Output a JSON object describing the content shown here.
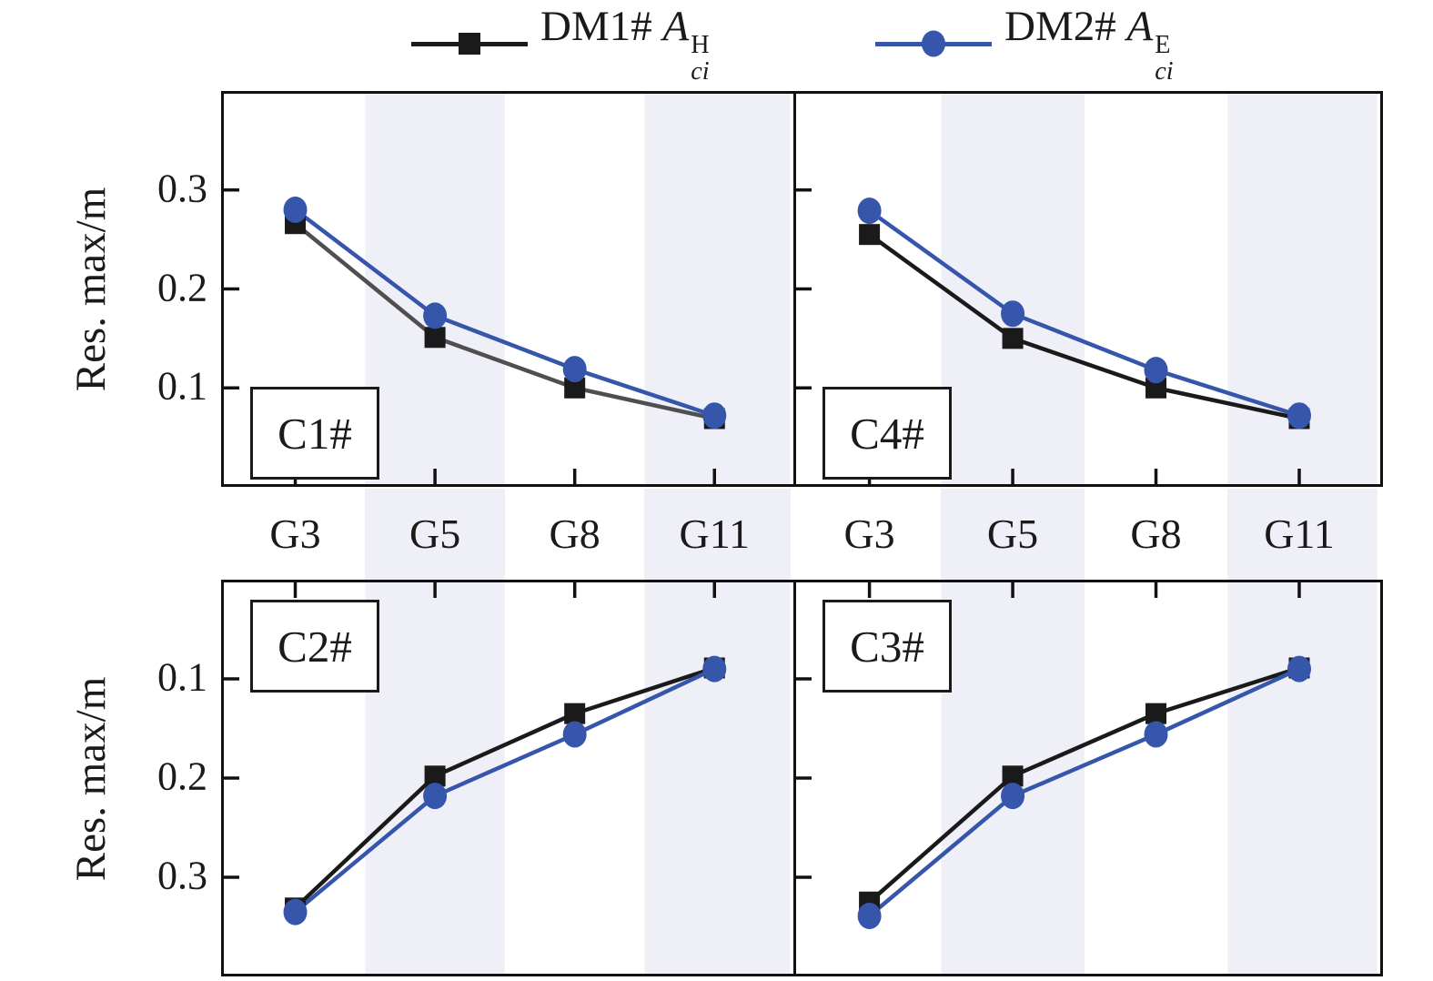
{
  "figure": {
    "y_axis_label": "Res. max/m",
    "categories": [
      "G3",
      "G5",
      "G8",
      "G11"
    ],
    "top_row_y_tick_labels": [
      "0.3",
      "0.2",
      "0.1"
    ],
    "bottom_row_y_tick_labels": [
      "0.1",
      "0.2",
      "0.3"
    ],
    "band_highlight_categories": [
      "G5",
      "G11"
    ],
    "colors": {
      "series_black": "#1a1a1a",
      "series_black_line_c1": "#4f4f4f",
      "series_blue": "#3556aa",
      "band": "#eff0f7",
      "axis": "#111111",
      "background": "#ffffff"
    }
  },
  "legend": {
    "entries": [
      {
        "prefix": "DM1# ",
        "symbol": "A",
        "sup": "H",
        "sub": "ci",
        "marker": "square",
        "color": "#1a1a1a"
      },
      {
        "prefix": "DM2# ",
        "symbol": "A",
        "sup": "E",
        "sub": "ci",
        "marker": "circle",
        "color": "#3556aa"
      }
    ]
  },
  "chart_data": [
    {
      "type": "line",
      "label": "C1#",
      "panel": "top-left",
      "categories": [
        "G3",
        "G5",
        "G8",
        "G11"
      ],
      "ylabel": "Res. max/m",
      "ylim": [
        0,
        0.4
      ],
      "y_ticks": [
        0.1,
        0.2,
        0.3
      ],
      "y_inverted": false,
      "series": [
        {
          "name": "DM1# A_ci^H",
          "marker": "square",
          "line_color": "#4f4f4f",
          "marker_color": "#1a1a1a",
          "values": [
            0.266,
            0.151,
            0.1,
            0.069
          ]
        },
        {
          "name": "DM2# A_ci^E",
          "marker": "circle",
          "line_color": "#3556aa",
          "marker_color": "#3556aa",
          "values": [
            0.28,
            0.173,
            0.119,
            0.072
          ]
        }
      ]
    },
    {
      "type": "line",
      "label": "C4#",
      "panel": "top-right",
      "categories": [
        "G3",
        "G5",
        "G8",
        "G11"
      ],
      "ylabel": "Res. max/m",
      "ylim": [
        0,
        0.4
      ],
      "y_ticks": [
        0.1,
        0.2,
        0.3
      ],
      "y_inverted": false,
      "series": [
        {
          "name": "DM1# A_ci^H",
          "marker": "square",
          "line_color": "#1a1a1a",
          "marker_color": "#1a1a1a",
          "values": [
            0.255,
            0.15,
            0.1,
            0.069
          ]
        },
        {
          "name": "DM2# A_ci^E",
          "marker": "circle",
          "line_color": "#3556aa",
          "marker_color": "#3556aa",
          "values": [
            0.279,
            0.175,
            0.118,
            0.072
          ]
        }
      ]
    },
    {
      "type": "line",
      "label": "C2#",
      "panel": "bottom-left",
      "categories": [
        "G3",
        "G5",
        "G8",
        "G11"
      ],
      "ylabel": "Res. max/m",
      "ylim": [
        0,
        0.4
      ],
      "y_ticks": [
        0.1,
        0.2,
        0.3
      ],
      "y_inverted": true,
      "series": [
        {
          "name": "DM1# A_ci^H",
          "marker": "square",
          "line_color": "#1a1a1a",
          "marker_color": "#1a1a1a",
          "values": [
            0.331,
            0.198,
            0.135,
            0.089
          ]
        },
        {
          "name": "DM2# A_ci^E",
          "marker": "circle",
          "line_color": "#3556aa",
          "marker_color": "#3556aa",
          "values": [
            0.335,
            0.218,
            0.156,
            0.09
          ]
        }
      ]
    },
    {
      "type": "line",
      "label": "C3#",
      "panel": "bottom-right",
      "categories": [
        "G3",
        "G5",
        "G8",
        "G11"
      ],
      "ylabel": "Res. max/m",
      "ylim": [
        0,
        0.4
      ],
      "y_ticks": [
        0.1,
        0.2,
        0.3
      ],
      "y_inverted": true,
      "series": [
        {
          "name": "DM1# A_ci^H",
          "marker": "square",
          "line_color": "#1a1a1a",
          "marker_color": "#1a1a1a",
          "values": [
            0.325,
            0.198,
            0.135,
            0.089
          ]
        },
        {
          "name": "DM2# A_ci^E",
          "marker": "circle",
          "line_color": "#3556aa",
          "marker_color": "#3556aa",
          "values": [
            0.339,
            0.218,
            0.156,
            0.09
          ]
        }
      ]
    }
  ]
}
